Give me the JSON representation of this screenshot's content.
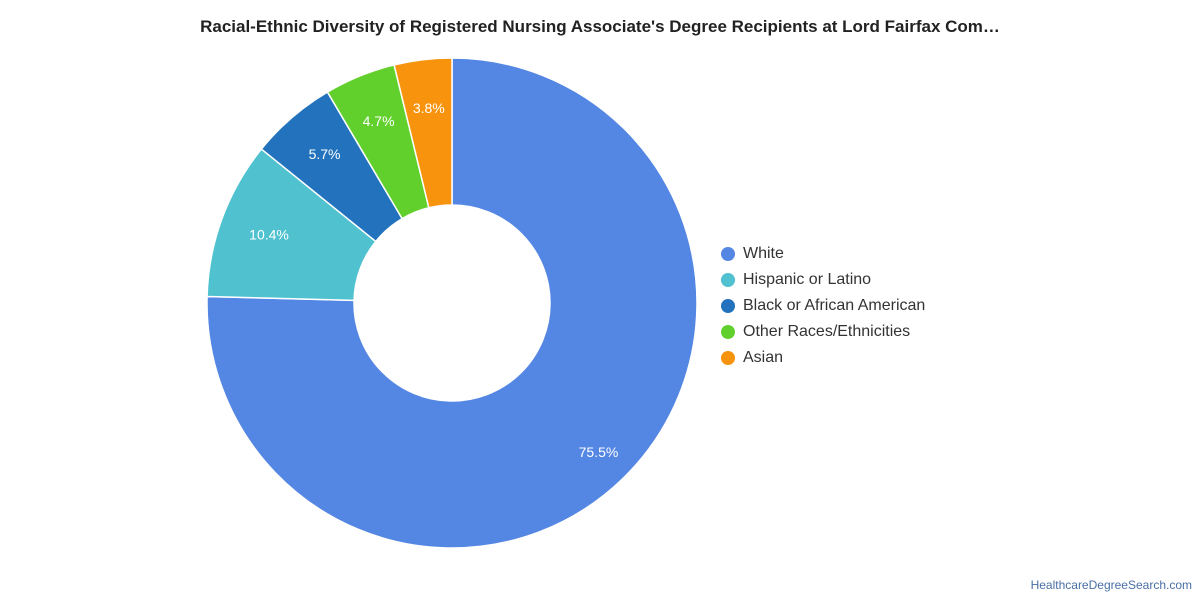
{
  "chart_data": {
    "type": "pie",
    "title": "Racial-Ethnic Diversity of Registered Nursing Associate's Degree Recipients at Lord Fairfax Com…",
    "categories": [
      "White",
      "Hispanic or Latino",
      "Black or African American",
      "Other Races/Ethnicities",
      "Asian"
    ],
    "values": [
      75.5,
      10.4,
      5.7,
      4.7,
      3.8
    ],
    "labels": [
      "75.5%",
      "10.4%",
      "5.7%",
      "4.7%",
      "3.8%"
    ],
    "colors": [
      "#5486e3",
      "#4fc1cf",
      "#2272bd",
      "#62d02c",
      "#f7930c"
    ],
    "legend_position": "right",
    "donut": true
  },
  "footer": {
    "source": "HealthcareDegreeSearch.com"
  }
}
